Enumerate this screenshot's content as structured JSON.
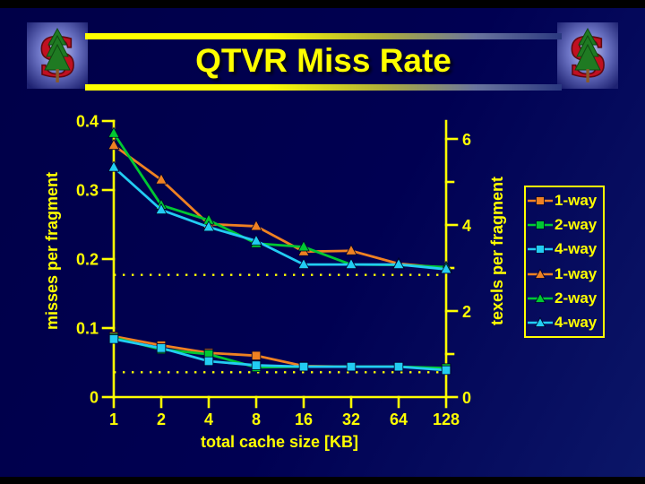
{
  "slide": {
    "title": "QTVR Miss Rate",
    "logo_name": "stanford-tree-logo"
  },
  "chart_data": {
    "type": "line",
    "x_scale": "log2",
    "x_categories": [
      "1",
      "2",
      "4",
      "8",
      "16",
      "32",
      "64",
      "128"
    ],
    "xlabel": "total cache size [KB]",
    "ylabel_left": "misses per fragment",
    "ylabel_right": "texels per fragment",
    "left_axis": {
      "tick_labels": [
        "0",
        "0.1",
        "0.2",
        "0.3",
        "0.4"
      ],
      "range": [
        0,
        0.4
      ]
    },
    "right_axis": {
      "major_tick_labels": [
        "0",
        "2",
        "4",
        "6"
      ],
      "minor_ticks": [
        1,
        3,
        5
      ],
      "range": [
        0,
        6.4
      ]
    },
    "reference_lines_left_axis": [
      0.177,
      0.036
    ],
    "grid": "off",
    "legend_position": "right",
    "series": [
      {
        "name": "1-way",
        "axis": "left",
        "marker": "square",
        "color": "#EF8122",
        "values": [
          0.088,
          0.075,
          0.064,
          0.06,
          0.045,
          0.044,
          0.044,
          0.041
        ]
      },
      {
        "name": "2-way",
        "axis": "left",
        "marker": "square",
        "color": "#00C832",
        "values": [
          0.086,
          0.069,
          0.062,
          0.043,
          0.044,
          0.044,
          0.044,
          0.042
        ]
      },
      {
        "name": "4-way",
        "axis": "left",
        "marker": "square",
        "color": "#22CCF2",
        "values": [
          0.084,
          0.071,
          0.052,
          0.046,
          0.044,
          0.044,
          0.044,
          0.039
        ]
      },
      {
        "name": "1-way",
        "axis": "right",
        "marker": "triangle",
        "color": "#EF8122",
        "values": [
          5.85,
          5.05,
          4.02,
          3.97,
          3.38,
          3.4,
          3.1,
          3.0
        ]
      },
      {
        "name": "2-way",
        "axis": "right",
        "marker": "triangle",
        "color": "#00C832",
        "values": [
          6.13,
          4.46,
          4.11,
          3.57,
          3.49,
          3.08,
          3.07,
          3.02
        ]
      },
      {
        "name": "4-way",
        "axis": "right",
        "marker": "triangle",
        "color": "#22CCF2",
        "values": [
          5.34,
          4.35,
          3.95,
          3.63,
          3.08,
          3.08,
          3.08,
          2.97
        ]
      }
    ],
    "colors": {
      "text_and_axes": "#FFFF00",
      "background": "#000052"
    }
  }
}
